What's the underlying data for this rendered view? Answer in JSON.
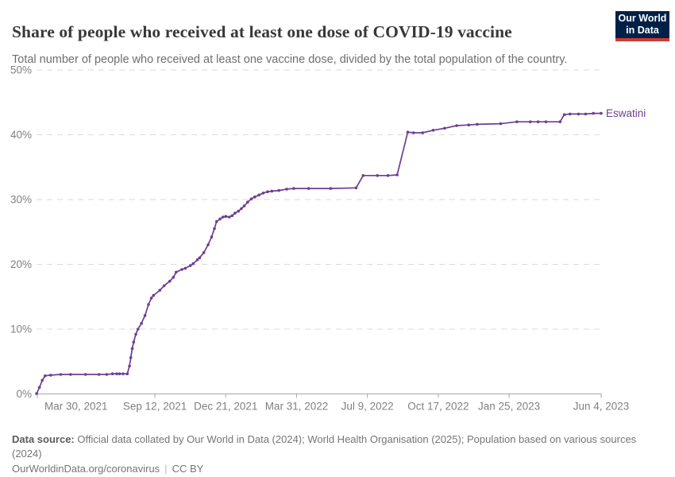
{
  "header": {
    "title": "Share of people who received at least one dose of COVID-19 vaccine",
    "subtitle": "Total number of people who received at least one vaccine dose, divided by the total population of the country.",
    "logo": {
      "line1": "Our World",
      "line2": "in Data"
    }
  },
  "footer": {
    "datasource_label": "Data source:",
    "datasource_text": " Official data collated by Our World in Data (2024); World Health Organisation (2025); Population based on various sources (2024)",
    "link": "OurWorldinData.org/coronavirus",
    "separator": "|",
    "license": "CC BY"
  },
  "colors": {
    "line": "#6D3E91",
    "entity_label": "#6D3E91",
    "grid": "#dadada",
    "axis": "#a8a8a8",
    "tick_label": "#808080",
    "logo_bg": "#002147",
    "logo_accent": "#cc3b33"
  },
  "chart_data": {
    "type": "line",
    "title": "Share of people who received at least one dose of COVID-19 vaccine",
    "subtitle": "Total number of people who received at least one vaccine dose, divided by the total population of the country.",
    "grid": "horizontal-dashed",
    "legend_position": "end-of-line",
    "ylabel": "",
    "xlabel": "",
    "ylim": [
      0,
      50
    ],
    "y_ticks": [
      0,
      10,
      20,
      30,
      40,
      50
    ],
    "y_tick_suffix": "%",
    "x_ticks": [
      {
        "label": "Mar 30, 2021",
        "date": "2021-03-30"
      },
      {
        "label": "Sep 12, 2021",
        "date": "2021-09-12"
      },
      {
        "label": "Dec 21, 2021",
        "date": "2021-12-21"
      },
      {
        "label": "Mar 31, 2022",
        "date": "2022-03-31"
      },
      {
        "label": "Jul 9, 2022",
        "date": "2022-07-09"
      },
      {
        "label": "Oct 17, 2022",
        "date": "2022-10-17"
      },
      {
        "label": "Jan 25, 2023",
        "date": "2023-01-25"
      },
      {
        "label": "Jun 4, 2023",
        "date": "2023-06-04"
      }
    ],
    "series": [
      {
        "name": "Eswatini",
        "points": [
          [
            "2021-03-29",
            0.05
          ],
          [
            "2021-04-02",
            1.0
          ],
          [
            "2021-04-06",
            2.1
          ],
          [
            "2021-04-10",
            2.8
          ],
          [
            "2021-04-18",
            2.9
          ],
          [
            "2021-05-02",
            3.0
          ],
          [
            "2021-05-16",
            3.0
          ],
          [
            "2021-06-06",
            3.0
          ],
          [
            "2021-06-25",
            3.0
          ],
          [
            "2021-07-06",
            3.0
          ],
          [
            "2021-07-14",
            3.1
          ],
          [
            "2021-07-20",
            3.1
          ],
          [
            "2021-07-24",
            3.1
          ],
          [
            "2021-07-29",
            3.1
          ],
          [
            "2021-08-04",
            3.1
          ],
          [
            "2021-08-07",
            4.3
          ],
          [
            "2021-08-09",
            5.6
          ],
          [
            "2021-08-11",
            7.0
          ],
          [
            "2021-08-13",
            8.0
          ],
          [
            "2021-08-16",
            9.2
          ],
          [
            "2021-08-19",
            10.0
          ],
          [
            "2021-08-24",
            10.9
          ],
          [
            "2021-08-29",
            12.1
          ],
          [
            "2021-09-03",
            13.8
          ],
          [
            "2021-09-07",
            14.8
          ],
          [
            "2021-09-10",
            15.2
          ],
          [
            "2021-09-19",
            16.0
          ],
          [
            "2021-09-25",
            16.7
          ],
          [
            "2021-10-03",
            17.4
          ],
          [
            "2021-10-08",
            18.0
          ],
          [
            "2021-10-12",
            18.8
          ],
          [
            "2021-10-20",
            19.2
          ],
          [
            "2021-10-25",
            19.4
          ],
          [
            "2021-11-01",
            19.8
          ],
          [
            "2021-11-05",
            20.1
          ],
          [
            "2021-11-11",
            20.7
          ],
          [
            "2021-11-14",
            21.0
          ],
          [
            "2021-11-20",
            21.8
          ],
          [
            "2021-11-26",
            23.0
          ],
          [
            "2021-12-01",
            24.2
          ],
          [
            "2021-12-05",
            25.5
          ],
          [
            "2021-12-08",
            26.6
          ],
          [
            "2021-12-13",
            27.0
          ],
          [
            "2021-12-17",
            27.3
          ],
          [
            "2021-12-21",
            27.4
          ],
          [
            "2021-12-26",
            27.3
          ],
          [
            "2021-12-30",
            27.5
          ],
          [
            "2022-01-03",
            27.9
          ],
          [
            "2022-01-08",
            28.2
          ],
          [
            "2022-01-12",
            28.6
          ],
          [
            "2022-01-16",
            29.0
          ],
          [
            "2022-01-21",
            29.6
          ],
          [
            "2022-01-26",
            30.1
          ],
          [
            "2022-01-31",
            30.4
          ],
          [
            "2022-02-06",
            30.7
          ],
          [
            "2022-02-12",
            31.0
          ],
          [
            "2022-02-18",
            31.2
          ],
          [
            "2022-02-24",
            31.3
          ],
          [
            "2022-03-06",
            31.4
          ],
          [
            "2022-03-17",
            31.6
          ],
          [
            "2022-03-27",
            31.7
          ],
          [
            "2022-04-17",
            31.7
          ],
          [
            "2022-05-18",
            31.7
          ],
          [
            "2022-06-23",
            31.8
          ],
          [
            "2022-07-03",
            33.7
          ],
          [
            "2022-07-23",
            33.7
          ],
          [
            "2022-08-07",
            33.7
          ],
          [
            "2022-08-20",
            33.8
          ],
          [
            "2022-09-04",
            40.4
          ],
          [
            "2022-09-12",
            40.3
          ],
          [
            "2022-09-25",
            40.3
          ],
          [
            "2022-10-10",
            40.7
          ],
          [
            "2022-10-26",
            41.0
          ],
          [
            "2022-11-12",
            41.4
          ],
          [
            "2022-11-29",
            41.5
          ],
          [
            "2022-12-11",
            41.6
          ],
          [
            "2023-01-13",
            41.7
          ],
          [
            "2023-02-05",
            42.0
          ],
          [
            "2023-02-24",
            42.0
          ],
          [
            "2023-03-07",
            42.0
          ],
          [
            "2023-03-18",
            42.0
          ],
          [
            "2023-04-07",
            42.0
          ],
          [
            "2023-04-13",
            43.1
          ],
          [
            "2023-04-21",
            43.2
          ],
          [
            "2023-05-03",
            43.2
          ],
          [
            "2023-05-13",
            43.2
          ],
          [
            "2023-05-24",
            43.3
          ],
          [
            "2023-06-04",
            43.3
          ]
        ]
      }
    ]
  }
}
